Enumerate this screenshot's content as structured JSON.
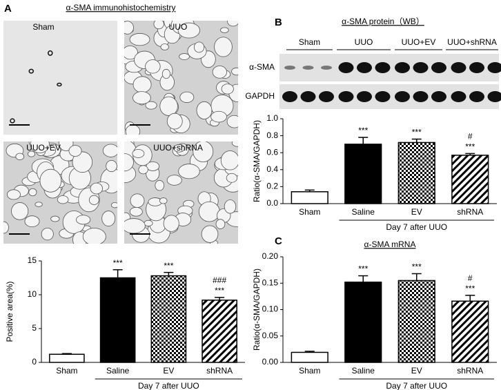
{
  "panel_labels": [
    "A",
    "B",
    "C"
  ],
  "histology": {
    "title": "α-SMA immunohistochemistry",
    "images": [
      "Sham",
      "UUO",
      "UUO+EV",
      "UUO+shRNA"
    ]
  },
  "western_blot": {
    "title": "α-SMA protein（WB）",
    "groups": [
      "Sham",
      "UUO",
      "UUO+EV",
      "UUO+shRNA"
    ],
    "rows": [
      "α-SMA",
      "GAPDH"
    ]
  },
  "chart_data": [
    {
      "type": "bar",
      "ylabel": "Positive area(%)",
      "categories": [
        "Sham",
        "Saline",
        "EV",
        "shRNA"
      ],
      "values": [
        1.2,
        12.5,
        12.8,
        9.2
      ],
      "errors": [
        0.1,
        1.2,
        0.5,
        0.4
      ],
      "significance": [
        null,
        "***",
        "***",
        "***"
      ],
      "significance_vs_ev": [
        null,
        null,
        null,
        "###"
      ],
      "fills": [
        "white",
        "black",
        "checker",
        "hatch"
      ],
      "group_label": "Day 7 after UUO",
      "ylim": [
        0,
        15
      ],
      "yticks": [
        0,
        5,
        10,
        15
      ]
    },
    {
      "type": "bar",
      "ylabel": "Ratio(α-SMA/GAPDH)",
      "categories": [
        "Sham",
        "Saline",
        "EV",
        "shRNA"
      ],
      "values": [
        0.14,
        0.7,
        0.72,
        0.57
      ],
      "errors": [
        0.02,
        0.08,
        0.04,
        0.02
      ],
      "significance": [
        null,
        "***",
        "***",
        "***"
      ],
      "significance_vs_ev": [
        null,
        null,
        null,
        "#"
      ],
      "fills": [
        "white",
        "black",
        "checker",
        "hatch"
      ],
      "group_label": "Day 7 after UUO",
      "ylim": [
        0,
        1
      ],
      "yticks": [
        {
          "value": 0,
          "label": "0.0"
        },
        0.2,
        0.4,
        0.6,
        0.8,
        {
          "value": 1,
          "label": "1.0"
        }
      ]
    },
    {
      "type": "bar",
      "title": "α-SMA mRNA",
      "ylabel": "Ratio(α-SMA/GAPDH)",
      "categories": [
        "Sham",
        "Saline",
        "EV",
        "shRNA"
      ],
      "values": [
        0.019,
        0.152,
        0.155,
        0.116
      ],
      "errors": [
        0.002,
        0.012,
        0.013,
        0.011
      ],
      "significance": [
        null,
        "***",
        "***",
        "***"
      ],
      "significance_vs_ev": [
        null,
        null,
        null,
        "#"
      ],
      "fills": [
        "white",
        "black",
        "checker",
        "hatch"
      ],
      "group_label": "Day 7 after UUO",
      "ylim": [
        0,
        0.2
      ],
      "yticks": [
        {
          "value": 0,
          "label": "0.00"
        },
        0.05,
        {
          "value": 0.1,
          "label": "0.10"
        },
        0.15,
        {
          "value": 0.2,
          "label": "0.20"
        }
      ]
    }
  ]
}
